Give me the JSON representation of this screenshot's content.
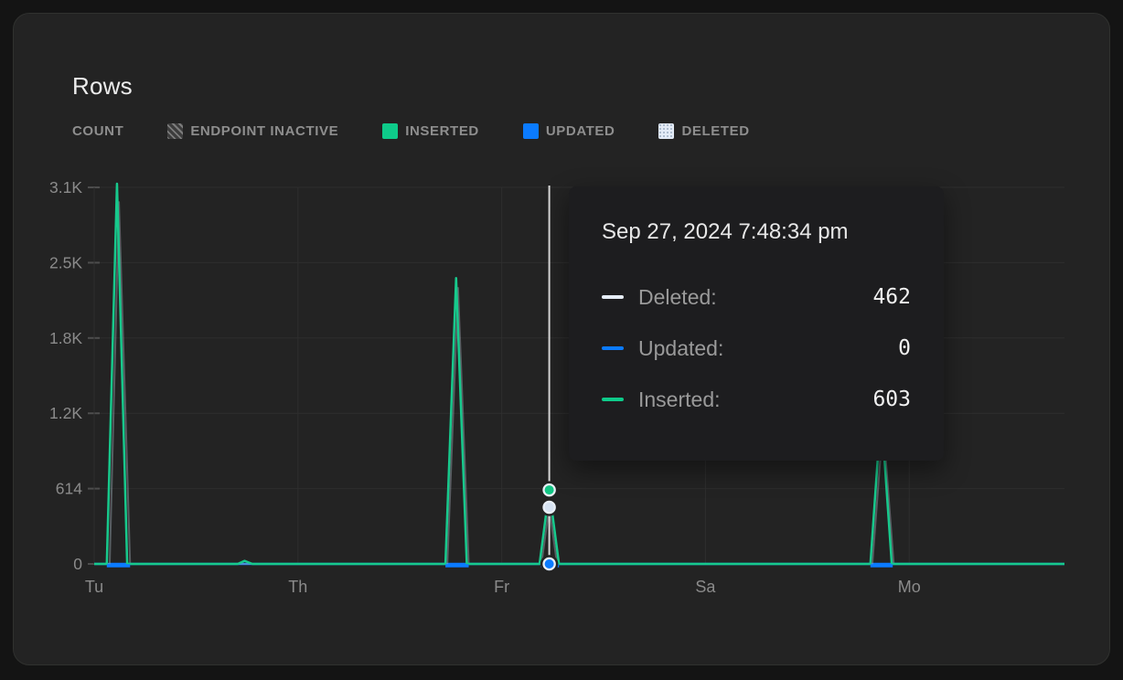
{
  "panel": {
    "title": "Rows"
  },
  "legend": {
    "count_label": "COUNT",
    "items": [
      {
        "label": "ENDPOINT INACTIVE",
        "swatch": "hatch",
        "color": "#5a5a5a"
      },
      {
        "label": "INSERTED",
        "swatch": "solid",
        "color": "#0ecb8a"
      },
      {
        "label": "UPDATED",
        "swatch": "solid",
        "color": "#0b7bff"
      },
      {
        "label": "DELETED",
        "swatch": "dotted",
        "color": "#e3ebf6"
      }
    ]
  },
  "tooltip": {
    "title": "Sep 27, 2024 7:48:34 pm",
    "rows": [
      {
        "label": "Deleted:",
        "value": "462",
        "color": "#e6edf6"
      },
      {
        "label": "Updated:",
        "value": "0",
        "color": "#0b7bff"
      },
      {
        "label": "Inserted:",
        "value": "603",
        "color": "#0ecb8a"
      }
    ]
  },
  "colors": {
    "inserted_green": "#17c98c",
    "updated_blue": "#0b7bff",
    "deleted_light": "#d6e2f2",
    "crosshair": "#d8d8d8"
  },
  "chart_data": {
    "type": "line",
    "title": "Rows",
    "ylabel": "COUNT",
    "ylim": [
      0,
      3070
    ],
    "grid": true,
    "legend_position": "top",
    "y_ticks": [
      {
        "label": "0",
        "value": 0
      },
      {
        "label": "614",
        "value": 614
      },
      {
        "label": "1.2K",
        "value": 1228
      },
      {
        "label": "1.8K",
        "value": 1842
      },
      {
        "label": "2.5K",
        "value": 2456
      },
      {
        "label": "3.1K",
        "value": 3070
      }
    ],
    "x_ticks": [
      {
        "label": "Tu",
        "pos": 0.0
      },
      {
        "label": "Th",
        "pos": 0.21
      },
      {
        "label": "Fr",
        "pos": 0.42
      },
      {
        "label": "Sa",
        "pos": 0.63
      },
      {
        "label": "Mo",
        "pos": 0.84
      }
    ],
    "series": [
      {
        "name": "Updated",
        "color": "#0b7bff",
        "width": 2.5,
        "opacity": 1,
        "points": [
          [
            0,
            0
          ],
          [
            1,
            0
          ]
        ],
        "baseline_segments": [
          [
            0.013,
            0.037
          ],
          [
            0.362,
            0.386
          ],
          [
            0.46,
            0.479
          ],
          [
            0.8,
            0.823
          ]
        ]
      },
      {
        "name": "Deleted",
        "color": "#9aa4b0",
        "width": 2,
        "opacity": 0.45,
        "points": [
          [
            0,
            0
          ],
          [
            0.016,
            0
          ],
          [
            0.0255,
            2950
          ],
          [
            0.037,
            0
          ],
          [
            0.364,
            0
          ],
          [
            0.375,
            2250
          ],
          [
            0.386,
            0
          ],
          [
            0.461,
            0
          ],
          [
            0.469,
            462
          ],
          [
            0.477,
            0
          ],
          [
            0.802,
            0
          ],
          [
            0.813,
            1150
          ],
          [
            0.824,
            0
          ],
          [
            1,
            0
          ]
        ]
      },
      {
        "name": "Inserted",
        "color": "#17c98c",
        "width": 2.5,
        "opacity": 1,
        "points": [
          [
            0,
            0
          ],
          [
            0.013,
            0
          ],
          [
            0.0235,
            3100
          ],
          [
            0.034,
            0
          ],
          [
            0.148,
            0
          ],
          [
            0.155,
            25
          ],
          [
            0.163,
            0
          ],
          [
            0.362,
            0
          ],
          [
            0.373,
            2330
          ],
          [
            0.384,
            0
          ],
          [
            0.459,
            0
          ],
          [
            0.469,
            603
          ],
          [
            0.479,
            0
          ],
          [
            0.8,
            0
          ],
          [
            0.811,
            1250
          ],
          [
            0.822,
            0
          ],
          [
            1,
            0
          ]
        ]
      }
    ],
    "selected_point": {
      "x": 0.469,
      "timestamp": "Sep 27, 2024 7:48:34 pm",
      "markers": [
        {
          "series": "Inserted",
          "value": 603,
          "color": "#12c584"
        },
        {
          "series": "Deleted",
          "value": 462,
          "color": "#d6e2f2"
        },
        {
          "series": "Updated",
          "value": 0,
          "color": "#0b7bff"
        }
      ]
    }
  }
}
